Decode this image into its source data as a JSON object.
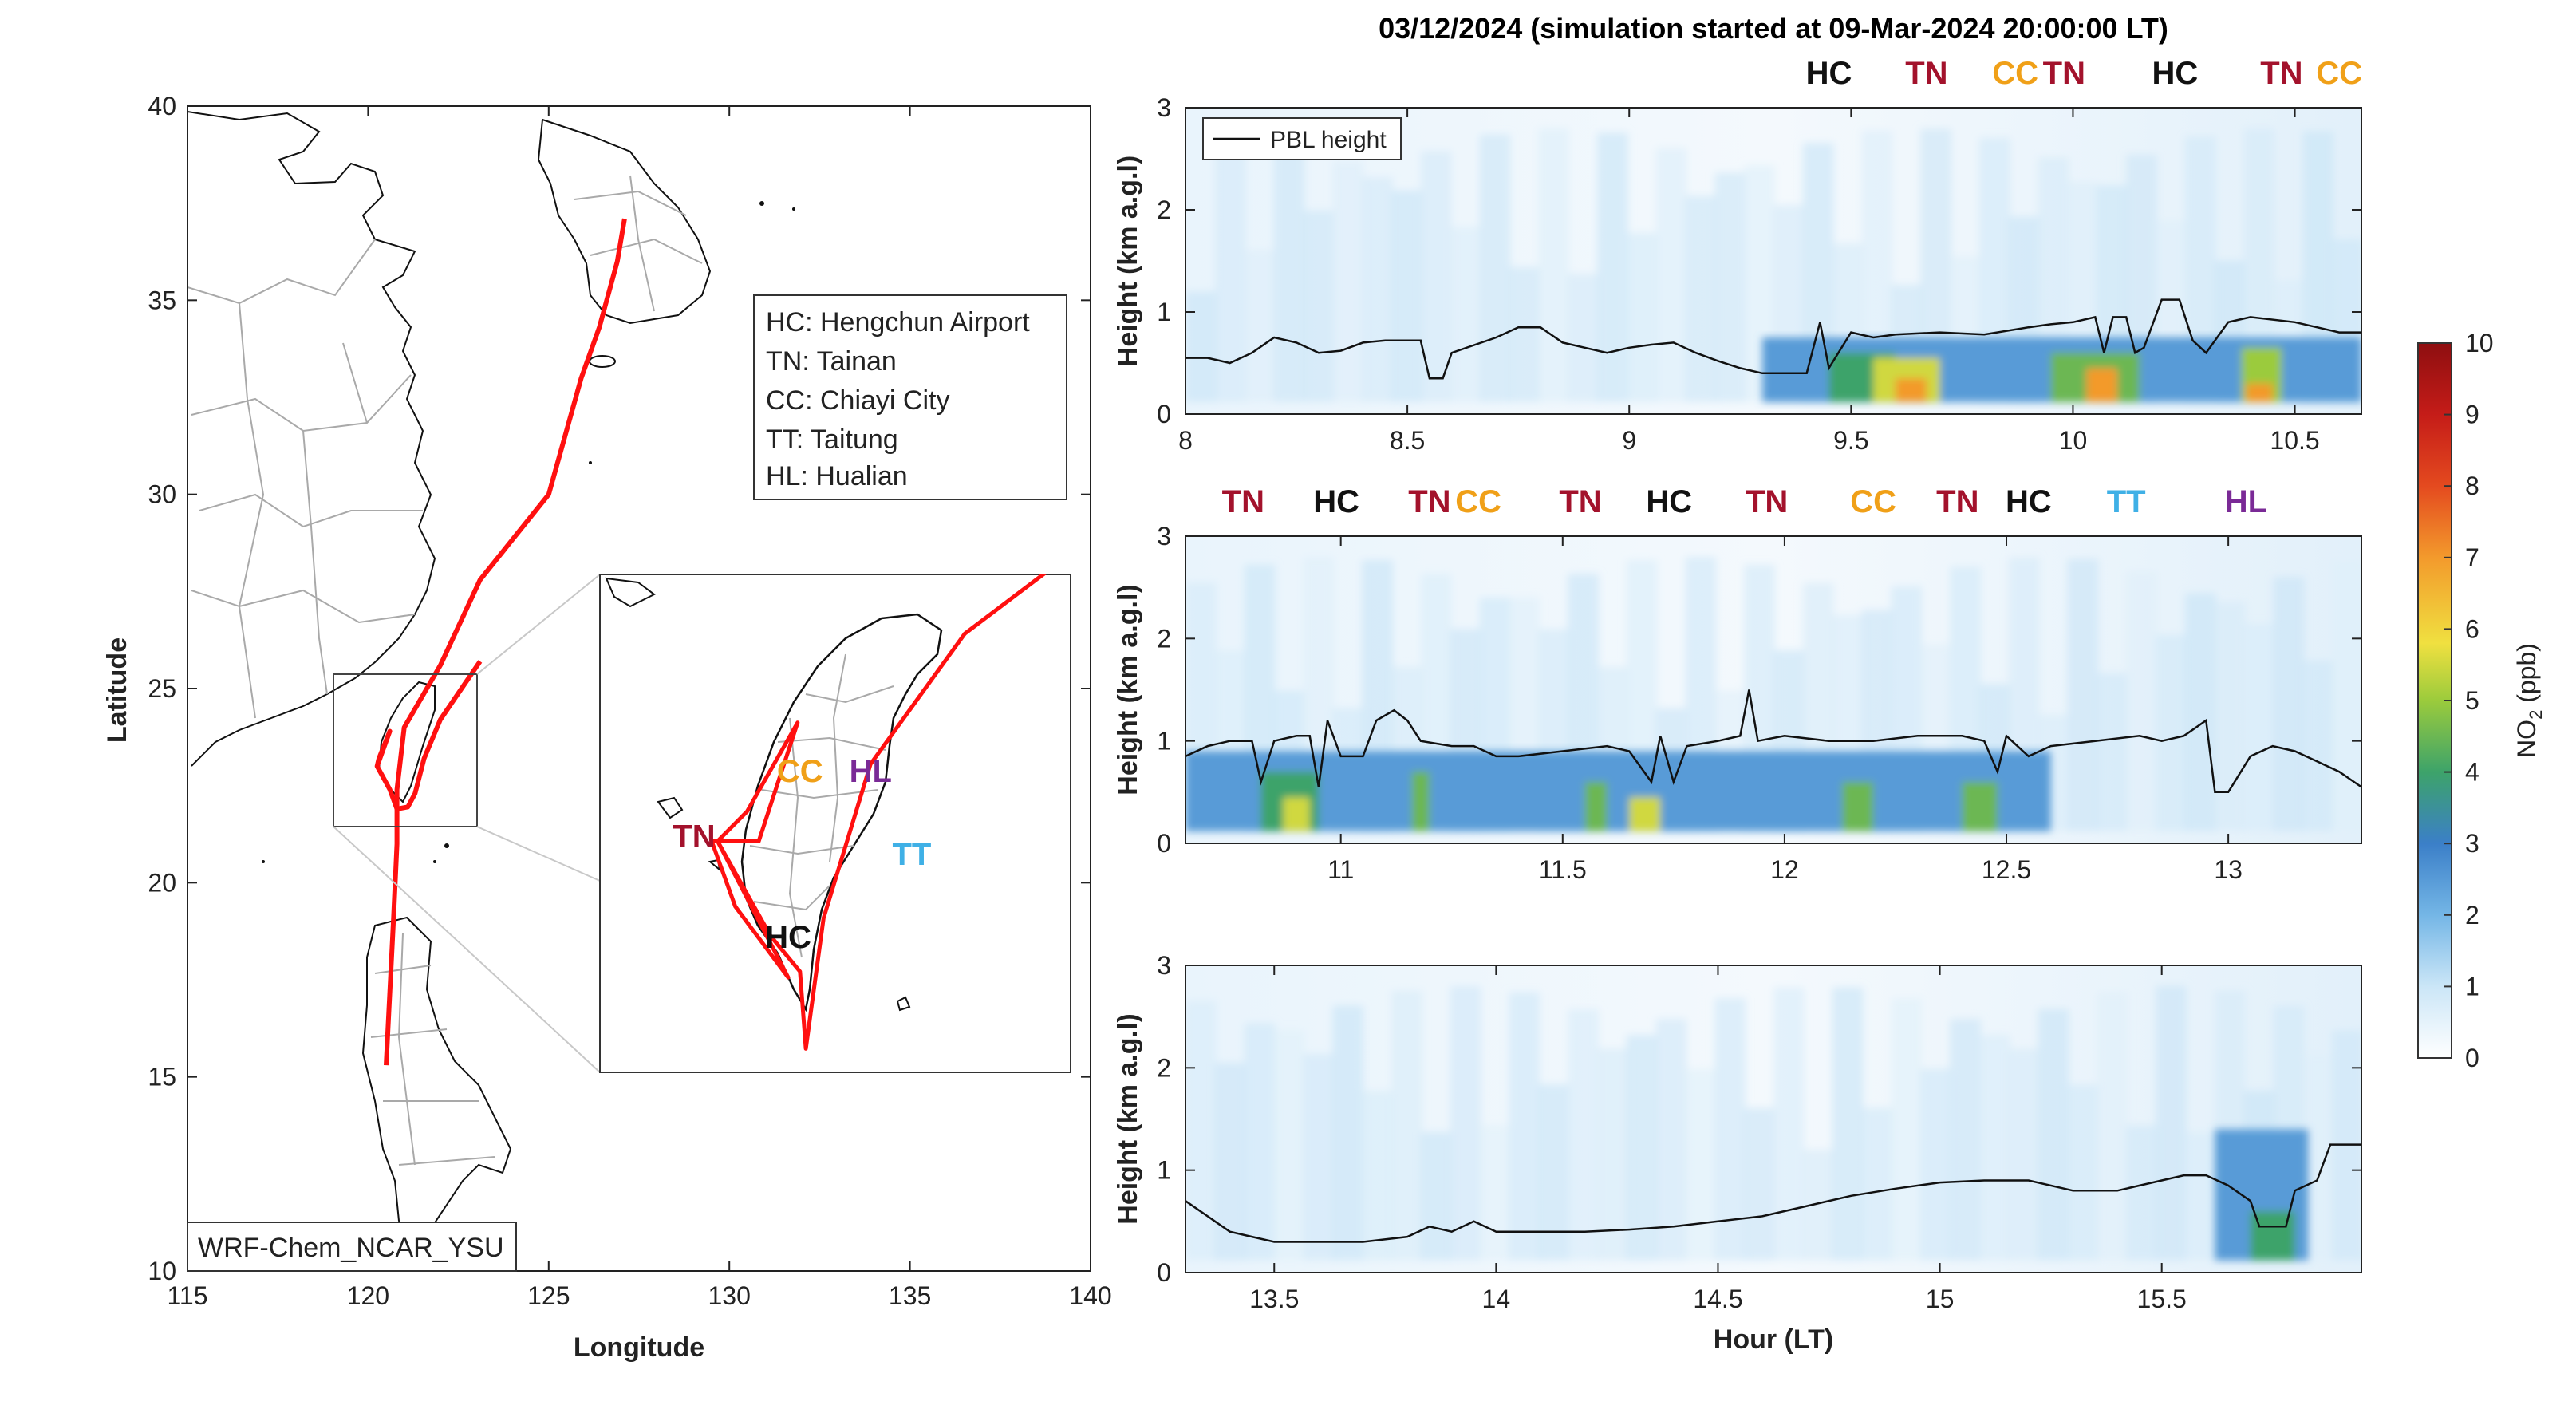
{
  "title": "03/12/2024 (simulation started at 09-Mar-2024 20:00:00 LT)",
  "colors": {
    "HC": "#111111",
    "TN": "#a3122c",
    "CC": "#f0a018",
    "TT": "#3fb0e6",
    "HL": "#7a2a96",
    "track": "#ff1010",
    "pbl": "#111111",
    "coast": "#111111",
    "admin": "#a9a9a9"
  },
  "map": {
    "xlabel": "Longitude",
    "ylabel": "Latitude",
    "xlim": [
      115,
      140
    ],
    "ylim": [
      10,
      40
    ],
    "xticks": [
      "115",
      "120",
      "125",
      "130",
      "135",
      "140"
    ],
    "yticks": [
      "10",
      "15",
      "20",
      "25",
      "30",
      "35",
      "40"
    ],
    "model_label": "WRF-Chem_NCAR_YSU",
    "legend": [
      "HC: Hengchun Airport",
      "TN: Tainan",
      "CC: Chiayi City",
      "TT: Taitung",
      "HL: Hualian"
    ],
    "inset_labels": [
      {
        "code": "CC",
        "lon": 121.0,
        "lat": 23.45
      },
      {
        "code": "HL",
        "lon": 121.6,
        "lat": 23.45
      },
      {
        "code": "TN",
        "lon": 120.1,
        "lat": 22.9
      },
      {
        "code": "TT",
        "lon": 121.95,
        "lat": 22.75
      },
      {
        "code": "HC",
        "lon": 120.9,
        "lat": 22.05
      }
    ],
    "track": [
      [
        127.1,
        37.1
      ],
      [
        126.9,
        36.0
      ],
      [
        126.4,
        34.3
      ],
      [
        125.9,
        33.0
      ],
      [
        125.0,
        30.0
      ],
      [
        123.1,
        27.8
      ],
      [
        122.0,
        25.6
      ],
      [
        121.0,
        24.0
      ],
      [
        120.8,
        22.4
      ],
      [
        120.8,
        21.0
      ],
      [
        120.7,
        19.0
      ],
      [
        120.5,
        15.3
      ]
    ],
    "track_taiwan": [
      [
        120.25,
        23.0
      ],
      [
        120.3,
        23.2
      ],
      [
        120.6,
        23.9
      ],
      [
        120.25,
        23.0
      ],
      [
        120.6,
        22.4
      ],
      [
        120.8,
        21.9
      ],
      [
        121.1,
        21.95
      ],
      [
        121.3,
        22.3
      ],
      [
        121.55,
        23.2
      ],
      [
        122.0,
        24.2
      ],
      [
        123.1,
        25.7
      ]
    ]
  },
  "chart_data": {
    "type": "heatmap",
    "variable": "NO2 (ppb)",
    "colorbar": {
      "label": "NO2 (ppb)",
      "min": 0,
      "max": 10,
      "ticks": [
        "0",
        "1",
        "2",
        "3",
        "4",
        "5",
        "6",
        "7",
        "8",
        "9",
        "10"
      ]
    },
    "ylabel": "Height (km a.g.l)",
    "xlabel": "Hour (LT)",
    "yticks": [
      "0",
      "1",
      "2",
      "3"
    ],
    "legend": [
      "PBL height"
    ],
    "panels": [
      {
        "xlim": [
          8,
          10.65
        ],
        "ylim": [
          0,
          3
        ],
        "xticks": [
          "8",
          "8.5",
          "9",
          "9.5",
          "10",
          "10.5"
        ],
        "site_labels": [
          {
            "code": "HC",
            "x": 9.45
          },
          {
            "code": "TN",
            "x": 9.67
          },
          {
            "code": "CC",
            "x": 9.87
          },
          {
            "code": "TN",
            "x": 9.98
          },
          {
            "code": "HC",
            "x": 10.23
          },
          {
            "code": "TN",
            "x": 10.47
          },
          {
            "code": "CC",
            "x": 10.6
          }
        ],
        "pbl": [
          [
            8.0,
            0.55
          ],
          [
            8.05,
            0.55
          ],
          [
            8.1,
            0.5
          ],
          [
            8.15,
            0.6
          ],
          [
            8.2,
            0.75
          ],
          [
            8.25,
            0.7
          ],
          [
            8.3,
            0.6
          ],
          [
            8.35,
            0.62
          ],
          [
            8.4,
            0.7
          ],
          [
            8.45,
            0.72
          ],
          [
            8.5,
            0.72
          ],
          [
            8.53,
            0.72
          ],
          [
            8.55,
            0.35
          ],
          [
            8.58,
            0.35
          ],
          [
            8.6,
            0.6
          ],
          [
            8.7,
            0.75
          ],
          [
            8.75,
            0.85
          ],
          [
            8.8,
            0.85
          ],
          [
            8.85,
            0.7
          ],
          [
            8.9,
            0.65
          ],
          [
            8.95,
            0.6
          ],
          [
            9.0,
            0.65
          ],
          [
            9.05,
            0.68
          ],
          [
            9.1,
            0.7
          ],
          [
            9.15,
            0.6
          ],
          [
            9.2,
            0.52
          ],
          [
            9.25,
            0.45
          ],
          [
            9.3,
            0.4
          ],
          [
            9.35,
            0.4
          ],
          [
            9.4,
            0.4
          ],
          [
            9.43,
            0.9
          ],
          [
            9.45,
            0.45
          ],
          [
            9.5,
            0.8
          ],
          [
            9.55,
            0.75
          ],
          [
            9.6,
            0.78
          ],
          [
            9.7,
            0.8
          ],
          [
            9.8,
            0.78
          ],
          [
            9.9,
            0.85
          ],
          [
            9.95,
            0.88
          ],
          [
            10.0,
            0.9
          ],
          [
            10.05,
            0.95
          ],
          [
            10.07,
            0.6
          ],
          [
            10.09,
            0.95
          ],
          [
            10.12,
            0.95
          ],
          [
            10.14,
            0.6
          ],
          [
            10.16,
            0.65
          ],
          [
            10.2,
            1.12
          ],
          [
            10.24,
            1.12
          ],
          [
            10.27,
            0.72
          ],
          [
            10.3,
            0.6
          ],
          [
            10.35,
            0.9
          ],
          [
            10.4,
            0.95
          ],
          [
            10.5,
            0.9
          ],
          [
            10.55,
            0.85
          ],
          [
            10.6,
            0.8
          ],
          [
            10.65,
            0.8
          ]
        ],
        "no2_blobs": [
          {
            "x0": 9.3,
            "x1": 10.65,
            "top": 0.75,
            "value": 2.5
          },
          {
            "x0": 9.45,
            "x1": 9.6,
            "top": 0.6,
            "value": 4.0
          },
          {
            "x0": 9.55,
            "x1": 9.7,
            "top": 0.55,
            "value": 5.5
          },
          {
            "x0": 9.6,
            "x1": 9.67,
            "top": 0.35,
            "value": 7.0
          },
          {
            "x0": 9.95,
            "x1": 10.15,
            "top": 0.6,
            "value": 4.5
          },
          {
            "x0": 10.03,
            "x1": 10.1,
            "top": 0.45,
            "value": 7.0
          },
          {
            "x0": 10.38,
            "x1": 10.47,
            "top": 0.65,
            "value": 5.0
          },
          {
            "x0": 10.39,
            "x1": 10.45,
            "top": 0.3,
            "value": 7.0
          }
        ]
      },
      {
        "xlim": [
          10.65,
          13.3
        ],
        "ylim": [
          0,
          3
        ],
        "xticks": [
          "11",
          "11.5",
          "12",
          "12.5",
          "13"
        ],
        "site_labels": [
          {
            "code": "TN",
            "x": 10.78
          },
          {
            "code": "HC",
            "x": 10.99
          },
          {
            "code": "TN",
            "x": 11.2
          },
          {
            "code": "CC",
            "x": 11.31
          },
          {
            "code": "TN",
            "x": 11.54
          },
          {
            "code": "HC",
            "x": 11.74
          },
          {
            "code": "TN",
            "x": 11.96
          },
          {
            "code": "CC",
            "x": 12.2
          },
          {
            "code": "TN",
            "x": 12.39
          },
          {
            "code": "HC",
            "x": 12.55
          },
          {
            "code": "TT",
            "x": 12.77
          },
          {
            "code": "HL",
            "x": 13.04
          }
        ],
        "pbl": [
          [
            10.65,
            0.85
          ],
          [
            10.7,
            0.95
          ],
          [
            10.75,
            1.0
          ],
          [
            10.8,
            1.0
          ],
          [
            10.82,
            0.6
          ],
          [
            10.85,
            1.0
          ],
          [
            10.9,
            1.05
          ],
          [
            10.93,
            1.05
          ],
          [
            10.95,
            0.55
          ],
          [
            10.97,
            1.2
          ],
          [
            11.0,
            0.85
          ],
          [
            11.05,
            0.85
          ],
          [
            11.08,
            1.2
          ],
          [
            11.12,
            1.3
          ],
          [
            11.15,
            1.2
          ],
          [
            11.18,
            1.0
          ],
          [
            11.25,
            0.95
          ],
          [
            11.3,
            0.95
          ],
          [
            11.35,
            0.85
          ],
          [
            11.4,
            0.85
          ],
          [
            11.5,
            0.9
          ],
          [
            11.6,
            0.95
          ],
          [
            11.65,
            0.9
          ],
          [
            11.7,
            0.6
          ],
          [
            11.72,
            1.05
          ],
          [
            11.75,
            0.6
          ],
          [
            11.78,
            0.95
          ],
          [
            11.85,
            1.0
          ],
          [
            11.9,
            1.05
          ],
          [
            11.92,
            1.5
          ],
          [
            11.94,
            1.0
          ],
          [
            12.0,
            1.05
          ],
          [
            12.1,
            1.0
          ],
          [
            12.2,
            1.0
          ],
          [
            12.3,
            1.05
          ],
          [
            12.4,
            1.05
          ],
          [
            12.45,
            1.0
          ],
          [
            12.48,
            0.7
          ],
          [
            12.5,
            1.05
          ],
          [
            12.55,
            0.85
          ],
          [
            12.6,
            0.95
          ],
          [
            12.7,
            1.0
          ],
          [
            12.8,
            1.05
          ],
          [
            12.85,
            1.0
          ],
          [
            12.9,
            1.05
          ],
          [
            12.95,
            1.2
          ],
          [
            12.97,
            0.5
          ],
          [
            13.0,
            0.5
          ],
          [
            13.05,
            0.85
          ],
          [
            13.1,
            0.95
          ],
          [
            13.15,
            0.9
          ],
          [
            13.2,
            0.8
          ],
          [
            13.25,
            0.7
          ],
          [
            13.3,
            0.55
          ]
        ],
        "no2_blobs": [
          {
            "x0": 10.65,
            "x1": 12.6,
            "top": 0.9,
            "value": 2.5
          },
          {
            "x0": 10.82,
            "x1": 10.95,
            "top": 0.7,
            "value": 4.0
          },
          {
            "x0": 10.87,
            "x1": 10.93,
            "top": 0.45,
            "value": 5.5
          },
          {
            "x0": 11.16,
            "x1": 11.2,
            "top": 0.7,
            "value": 4.5
          },
          {
            "x0": 11.55,
            "x1": 11.6,
            "top": 0.6,
            "value": 4.5
          },
          {
            "x0": 11.65,
            "x1": 11.72,
            "top": 0.45,
            "value": 5.5
          },
          {
            "x0": 12.13,
            "x1": 12.2,
            "top": 0.6,
            "value": 4.5
          },
          {
            "x0": 12.4,
            "x1": 12.48,
            "top": 0.6,
            "value": 4.5
          }
        ]
      },
      {
        "xlim": [
          13.3,
          15.95
        ],
        "ylim": [
          0,
          3
        ],
        "xticks": [
          "13.5",
          "14",
          "14.5",
          "15",
          "15.5"
        ],
        "site_labels": [],
        "pbl": [
          [
            13.3,
            0.7
          ],
          [
            13.35,
            0.55
          ],
          [
            13.4,
            0.4
          ],
          [
            13.45,
            0.35
          ],
          [
            13.5,
            0.3
          ],
          [
            13.6,
            0.3
          ],
          [
            13.7,
            0.3
          ],
          [
            13.8,
            0.35
          ],
          [
            13.85,
            0.45
          ],
          [
            13.9,
            0.4
          ],
          [
            13.95,
            0.5
          ],
          [
            14.0,
            0.4
          ],
          [
            14.1,
            0.4
          ],
          [
            14.2,
            0.4
          ],
          [
            14.3,
            0.42
          ],
          [
            14.4,
            0.45
          ],
          [
            14.5,
            0.5
          ],
          [
            14.6,
            0.55
          ],
          [
            14.7,
            0.65
          ],
          [
            14.8,
            0.75
          ],
          [
            14.9,
            0.82
          ],
          [
            15.0,
            0.88
          ],
          [
            15.1,
            0.9
          ],
          [
            15.2,
            0.9
          ],
          [
            15.3,
            0.8
          ],
          [
            15.4,
            0.8
          ],
          [
            15.5,
            0.9
          ],
          [
            15.55,
            0.95
          ],
          [
            15.6,
            0.95
          ],
          [
            15.65,
            0.85
          ],
          [
            15.7,
            0.7
          ],
          [
            15.72,
            0.45
          ],
          [
            15.78,
            0.45
          ],
          [
            15.8,
            0.8
          ],
          [
            15.85,
            0.9
          ],
          [
            15.88,
            1.25
          ],
          [
            15.95,
            1.25
          ]
        ],
        "no2_blobs": [
          {
            "x0": 15.62,
            "x1": 15.83,
            "top": 1.4,
            "value": 2.5
          },
          {
            "x0": 15.7,
            "x1": 15.8,
            "top": 0.6,
            "value": 4.0
          }
        ]
      }
    ]
  }
}
